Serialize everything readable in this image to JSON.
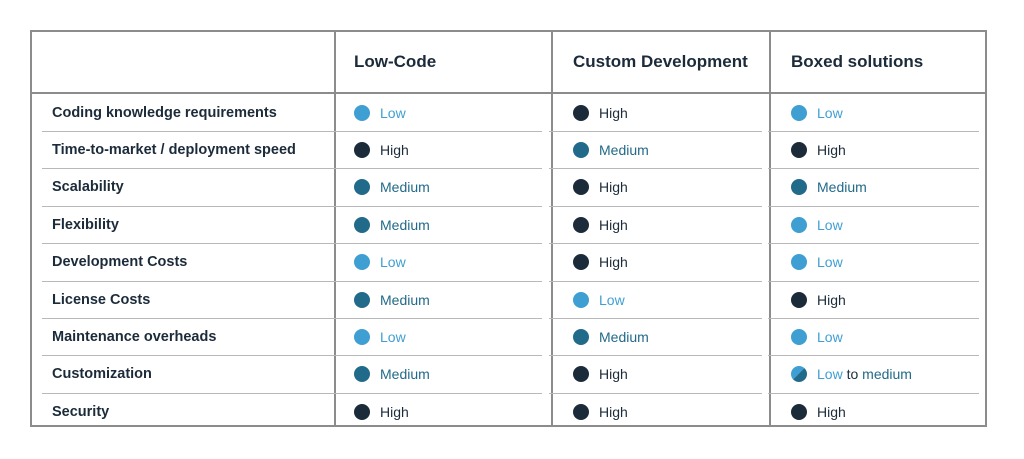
{
  "colors": {
    "low": "#3f9fd3",
    "medium": "#226a8a",
    "high": "#1c2b3a",
    "border": "#8c8c8c"
  },
  "headers": [
    "",
    "Low-Code",
    "Custom Development",
    "Boxed solutions"
  ],
  "rows": [
    {
      "label": "Coding knowledge requirements",
      "cells": [
        {
          "level": "low",
          "text": "Low"
        },
        {
          "level": "high",
          "text": "High"
        },
        {
          "level": "low",
          "text": "Low"
        }
      ]
    },
    {
      "label": "Time-to-market / deployment speed",
      "cells": [
        {
          "level": "high",
          "text": "High"
        },
        {
          "level": "medium",
          "text": "Medium"
        },
        {
          "level": "high",
          "text": "High"
        }
      ]
    },
    {
      "label": "Scalability",
      "cells": [
        {
          "level": "medium",
          "text": "Medium"
        },
        {
          "level": "high",
          "text": "High"
        },
        {
          "level": "medium",
          "text": "Medium"
        }
      ]
    },
    {
      "label": "Flexibility",
      "cells": [
        {
          "level": "medium",
          "text": "Medium"
        },
        {
          "level": "high",
          "text": "High"
        },
        {
          "level": "low",
          "text": "Low"
        }
      ]
    },
    {
      "label": "Development Costs",
      "cells": [
        {
          "level": "low",
          "text": "Low"
        },
        {
          "level": "high",
          "text": "High"
        },
        {
          "level": "low",
          "text": "Low"
        }
      ]
    },
    {
      "label": "License Costs",
      "cells": [
        {
          "level": "medium",
          "text": "Medium"
        },
        {
          "level": "low",
          "text": "Low"
        },
        {
          "level": "high",
          "text": "High"
        }
      ]
    },
    {
      "label": "Maintenance overheads",
      "cells": [
        {
          "level": "low",
          "text": "Low"
        },
        {
          "level": "medium",
          "text": "Medium"
        },
        {
          "level": "low",
          "text": "Low"
        }
      ]
    },
    {
      "label": "Customization",
      "cells": [
        {
          "level": "medium",
          "text": "Medium"
        },
        {
          "level": "high",
          "text": "High"
        },
        {
          "level": "low-medium",
          "parts": [
            {
              "level": "low",
              "text": "Low"
            },
            {
              "level": "plain",
              "text": " to "
            },
            {
              "level": "medium",
              "text": "medium"
            }
          ]
        }
      ]
    },
    {
      "label": "Security",
      "cells": [
        {
          "level": "high",
          "text": "High"
        },
        {
          "level": "high",
          "text": "High"
        },
        {
          "level": "high",
          "text": "High"
        }
      ]
    }
  ]
}
